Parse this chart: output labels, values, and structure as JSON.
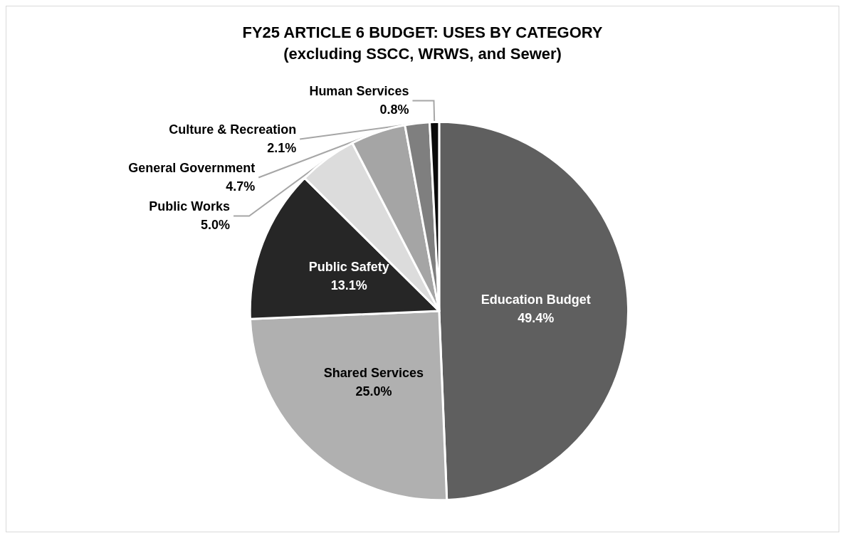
{
  "chart_data": {
    "type": "pie",
    "title": "FY25 ARTICLE 6 BUDGET: USES BY CATEGORY",
    "subtitle": "(excluding SSCC, WRWS, and Sewer)",
    "categories": [
      "Education Budget",
      "Shared Services",
      "Public Safety",
      "Public Works",
      "General Government",
      "Culture & Recreation",
      "Human Services"
    ],
    "values": [
      49.4,
      25.0,
      13.1,
      5.0,
      4.7,
      2.1,
      0.8
    ],
    "colors": [
      "#5f5f5f",
      "#b0b0b0",
      "#262626",
      "#dcdcdc",
      "#a5a5a5",
      "#7f7f7f",
      "#0a0a0a"
    ],
    "value_labels": [
      "49.4%",
      "25.0%",
      "13.1%",
      "5.0%",
      "4.7%",
      "2.1%",
      "0.8%"
    ],
    "legend": false
  }
}
